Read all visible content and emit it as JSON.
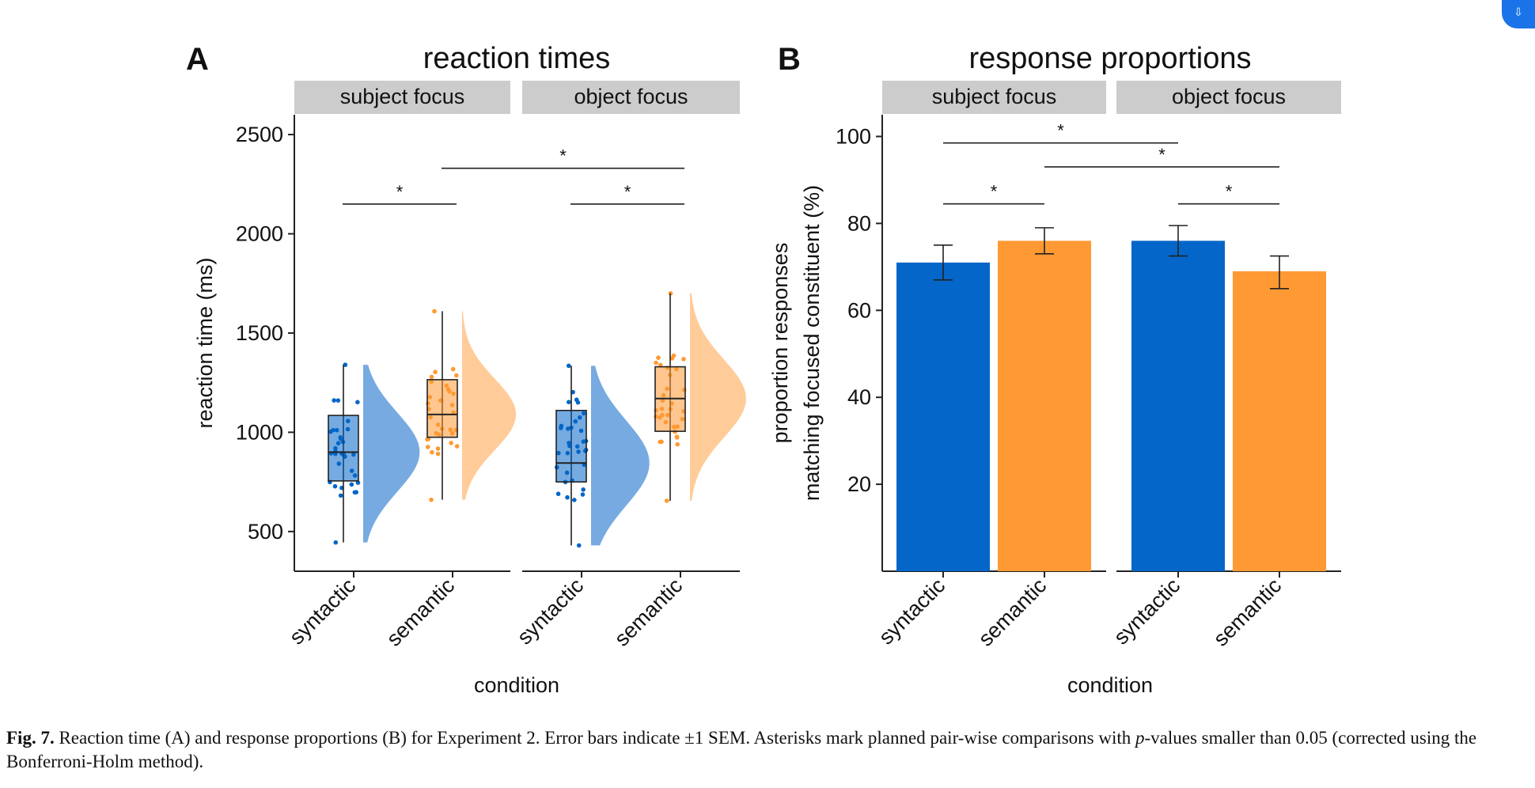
{
  "panels": [
    {
      "letter": "A",
      "title": "reaction times",
      "facets": [
        "subject focus",
        "object focus"
      ],
      "ylabel": "reaction time (ms)",
      "xlabel": "condition"
    },
    {
      "letter": "B",
      "title": "response proportions",
      "facets": [
        "subject focus",
        "object focus"
      ],
      "ylabel_line1": "proportion responses",
      "ylabel_line2": "matching focused constituent (%)",
      "xlabel": "condition"
    }
  ],
  "colors": {
    "syntactic": "#0466c8",
    "semantic": "#ff9933",
    "syntactic_light": "#78aae2",
    "semantic_light": "#ffcc99",
    "strip": "#cccccc"
  },
  "chart_data": [
    {
      "type": "box",
      "title": "reaction times",
      "ylabel": "reaction time (ms)",
      "xlabel": "condition",
      "ylim": [
        300,
        2600
      ],
      "yticks": [
        500,
        1000,
        1500,
        2000,
        2500
      ],
      "categories": [
        "syntactic",
        "semantic"
      ],
      "facets": [
        {
          "name": "subject focus",
          "groups": [
            {
              "condition": "syntactic",
              "min": 445,
              "q1": 755,
              "median": 900,
              "q3": 1085,
              "max": 1340
            },
            {
              "condition": "semantic",
              "min": 660,
              "q1": 975,
              "median": 1090,
              "q3": 1265,
              "max": 1610
            }
          ]
        },
        {
          "name": "object focus",
          "groups": [
            {
              "condition": "syntactic",
              "min": 430,
              "q1": 750,
              "median": 845,
              "q3": 1110,
              "max": 1335
            },
            {
              "condition": "semantic",
              "min": 655,
              "q1": 1005,
              "median": 1170,
              "q3": 1330,
              "max": 1700
            }
          ]
        }
      ],
      "significance": [
        {
          "from": "subject focus / syntactic",
          "to": "subject focus / semantic",
          "y": 2150,
          "label": "*"
        },
        {
          "from": "subject focus / semantic",
          "to": "object focus / semantic",
          "y": 2330,
          "label": "*"
        },
        {
          "from": "object focus / syntactic",
          "to": "object focus / semantic",
          "y": 2150,
          "label": "*"
        }
      ]
    },
    {
      "type": "bar",
      "title": "response proportions",
      "ylabel": "proportion responses matching focused constituent (%)",
      "xlabel": "condition",
      "ylim": [
        0,
        105
      ],
      "yticks": [
        20,
        40,
        60,
        80,
        100
      ],
      "categories": [
        "syntactic",
        "semantic"
      ],
      "facets": [
        {
          "name": "subject focus",
          "bars": [
            {
              "condition": "syntactic",
              "value": 71,
              "err_low": 67,
              "err_high": 75
            },
            {
              "condition": "semantic",
              "value": 76,
              "err_low": 73,
              "err_high": 79
            }
          ]
        },
        {
          "name": "object focus",
          "bars": [
            {
              "condition": "syntactic",
              "value": 76,
              "err_low": 72.5,
              "err_high": 79.5
            },
            {
              "condition": "semantic",
              "value": 69,
              "err_low": 65,
              "err_high": 72.5
            }
          ]
        }
      ],
      "significance": [
        {
          "from": "subject focus / syntactic",
          "to": "subject focus / semantic",
          "y": 84.5,
          "label": "*"
        },
        {
          "from": "subject focus / syntactic",
          "to": "object focus / syntactic",
          "y": 98.5,
          "label": "*"
        },
        {
          "from": "subject focus / semantic",
          "to": "object focus / semantic",
          "y": 93,
          "label": "*"
        },
        {
          "from": "object focus / syntactic",
          "to": "object focus / semantic",
          "y": 84.5,
          "label": "*"
        }
      ]
    }
  ],
  "caption": {
    "label": "Fig. 7.",
    "text_before_p": " Reaction time (A) and response proportions (B) for Experiment 2. Error bars indicate ±1 SEM. Asterisks mark planned pair-wise comparisons with ",
    "p_symbol": "p",
    "text_after_p": "-values smaller than 0.05 (corrected using the Bonferroni-Holm method)."
  }
}
